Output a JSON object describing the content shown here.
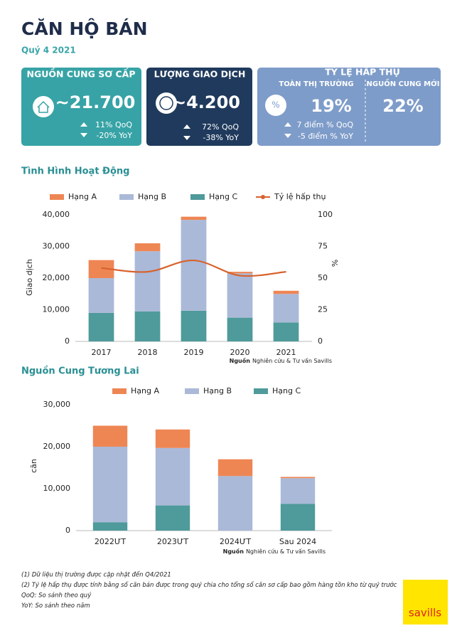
{
  "header": {
    "title": "CĂN HỘ BÁN",
    "subtitle": "Quý 4 2021"
  },
  "cards": [
    {
      "title": "NGUỒN CUNG SƠ CẤP",
      "value": "~21.700",
      "qoq": "11% QoQ",
      "yoy": "-20% YoY"
    },
    {
      "title": "LƯỢNG GIAO DỊCH",
      "value": "~4.200",
      "qoq": "72% QoQ",
      "yoy": "-38% YoY"
    },
    {
      "title": "TỶ LỆ HẤP THỤ",
      "sections": [
        {
          "label": "TOÀN THỊ TRƯỜNG",
          "value": "19%",
          "qoq": "7 điểm % QoQ",
          "yoy": "-5 điểm % YoY"
        },
        {
          "label": "NGUỒN CUNG MỚI",
          "value": "22%"
        }
      ]
    }
  ],
  "chart_data": [
    {
      "type": "bar",
      "stacked": true,
      "title": "Tình Hình Hoạt Động",
      "y_label": "Giao dịch",
      "y2_label": "%",
      "categories": [
        "2017",
        "2018",
        "2019",
        "2020",
        "2021"
      ],
      "series": [
        {
          "name": "Hạng C",
          "color": "#4f9a9b",
          "values": [
            9000,
            9500,
            9700,
            7500,
            6000
          ]
        },
        {
          "name": "Hạng B",
          "color": "#aab9d8",
          "values": [
            11000,
            19000,
            28700,
            14000,
            9000
          ]
        },
        {
          "name": "Hạng A",
          "color": "#ee8654",
          "values": [
            5700,
            2500,
            1000,
            500,
            1000
          ]
        },
        {
          "name": "Tỷ lệ hấp thụ",
          "type": "line",
          "axis": "y2",
          "color": "#d8622c",
          "values": [
            58,
            55,
            64,
            52,
            55
          ]
        }
      ],
      "legend_order": [
        2,
        1,
        0,
        3
      ],
      "ylim": [
        0,
        40000
      ],
      "yticks": [
        0,
        {
          "value": 10000,
          "label": "10,000"
        },
        {
          "value": 20000,
          "label": "20,000"
        },
        {
          "value": 30000,
          "label": "30,000"
        },
        {
          "value": 40000,
          "label": "40,000"
        }
      ],
      "y2lim": [
        0,
        100
      ],
      "y2ticks": [
        0,
        25,
        50,
        75,
        100
      ],
      "grid": false,
      "source_label": "Nguồn",
      "source": "Nghiên cứu & Tư vấn Savills"
    },
    {
      "type": "bar",
      "stacked": true,
      "title": "Nguồn Cung Tương Lai",
      "y_label": "căn",
      "categories": [
        "2022ƯT",
        "2023ƯT",
        "2024ƯT",
        "Sau 2024"
      ],
      "series": [
        {
          "name": "Hạng C",
          "color": "#4f9a9b",
          "values": [
            2000,
            6000,
            0,
            6400
          ]
        },
        {
          "name": "Hạng B",
          "color": "#aab9d8",
          "values": [
            18000,
            13700,
            13000,
            6100
          ]
        },
        {
          "name": "Hạng A",
          "color": "#ee8654",
          "values": [
            5000,
            4400,
            4000,
            300
          ]
        }
      ],
      "legend_order": [
        2,
        1,
        0
      ],
      "ylim": [
        0,
        30000
      ],
      "yticks": [
        0,
        {
          "value": 10000,
          "label": "10,000"
        },
        {
          "value": 20000,
          "label": "20,000"
        },
        {
          "value": 30000,
          "label": "30,000"
        }
      ],
      "grid": false,
      "source_label": "Nguồn",
      "source": "Nghiên cứu & Tư vấn Savills"
    }
  ],
  "footnotes": [
    "(1) Dữ liệu thị trường được cập nhật đến Q4/2021",
    "(2) Tỷ lệ hấp thụ được tính bằng số căn bán được trong quý chia cho tổng số căn sơ cấp bao gồm hàng tồn kho từ quý trước",
    "QoQ: So sánh theo quý",
    "YoY: So sánh theo năm"
  ],
  "logo": "savills"
}
